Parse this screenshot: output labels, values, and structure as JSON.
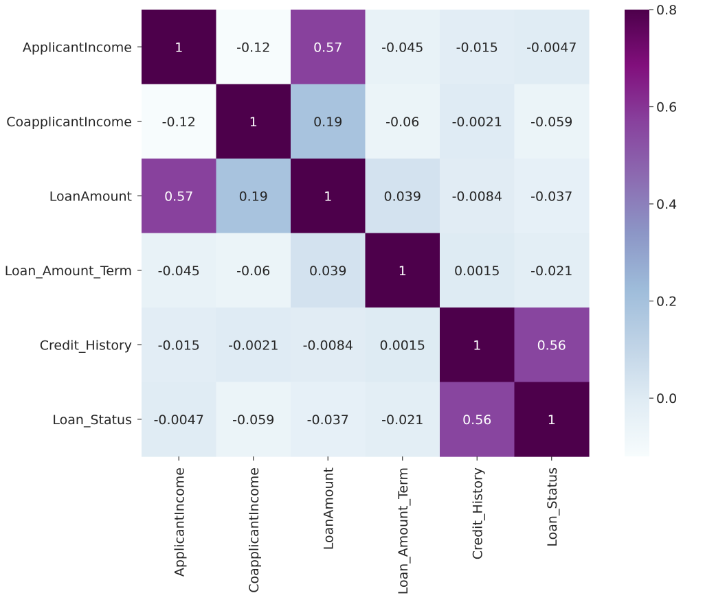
{
  "chart_data": {
    "type": "heatmap",
    "title": "",
    "xlabel": "",
    "ylabel": "",
    "rows": [
      "ApplicantIncome",
      "CoapplicantIncome",
      "LoanAmount",
      "Loan_Amount_Term",
      "Credit_History",
      "Loan_Status"
    ],
    "columns": [
      "ApplicantIncome",
      "CoapplicantIncome",
      "LoanAmount",
      "Loan_Amount_Term",
      "Credit_History",
      "Loan_Status"
    ],
    "values": [
      [
        1,
        -0.12,
        0.57,
        -0.045,
        -0.015,
        -0.0047
      ],
      [
        -0.12,
        1,
        0.19,
        -0.06,
        -0.0021,
        -0.059
      ],
      [
        0.57,
        0.19,
        1,
        0.039,
        -0.0084,
        -0.037
      ],
      [
        -0.045,
        -0.06,
        0.039,
        1,
        0.0015,
        -0.021
      ],
      [
        -0.015,
        -0.0021,
        -0.0084,
        0.0015,
        1,
        0.56
      ],
      [
        -0.0047,
        -0.059,
        -0.037,
        -0.021,
        0.56,
        1
      ]
    ],
    "colormap": "BuPu",
    "colors": [
      "#f7fcfd",
      "#e0ecf4",
      "#bfd3e6",
      "#9ebcda",
      "#8c96c6",
      "#8c6bb1",
      "#88419d",
      "#810f7c",
      "#4d004b"
    ],
    "vmin": -0.12,
    "vmax": 0.8,
    "colorbar": {
      "ticks": [
        0.8,
        0.6,
        0.4,
        0.2,
        0.0
      ],
      "tick_labels": [
        "0.8",
        "0.6",
        "0.4",
        "0.2",
        "0.0"
      ],
      "placement": "right"
    }
  }
}
